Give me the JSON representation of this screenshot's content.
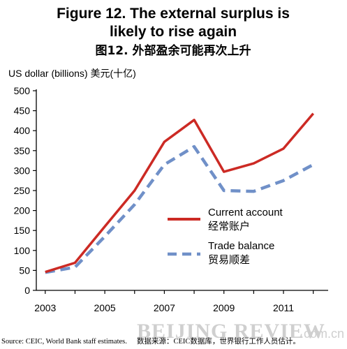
{
  "header": {
    "title_line1": "Figure 12. The external surplus is",
    "title_line2": "likely to rise again",
    "title_zh": "图12. 外部盈余可能再次上升"
  },
  "chart_data": {
    "type": "line",
    "ylabel": "US dollar (billions) 美元(十亿)",
    "xlabel": "",
    "x": [
      2003,
      2004,
      2005,
      2006,
      2007,
      2008,
      2009,
      2010,
      2011,
      2012
    ],
    "xticks": [
      "2003",
      "2005",
      "2007",
      "2009",
      "2011"
    ],
    "yticks": [
      "0",
      "50",
      "100",
      "150",
      "200",
      "250",
      "300",
      "350",
      "400",
      "450",
      "500"
    ],
    "ylim": [
      0,
      500
    ],
    "xlim": [
      2002.7,
      2012.5
    ],
    "grid": false,
    "legend_position": "center-right",
    "series": [
      {
        "name": "Current account",
        "name_zh": "经常账户",
        "color": "#cc2a24",
        "style": "solid",
        "values": [
          46,
          69,
          160,
          250,
          372,
          427,
          297,
          318,
          355,
          443
        ]
      },
      {
        "name": "Trade balance",
        "name_zh": "贸易顺差",
        "color": "#7090c8",
        "style": "dashed",
        "values": [
          45,
          58,
          135,
          215,
          315,
          360,
          250,
          248,
          275,
          315
        ]
      }
    ]
  },
  "footer": {
    "source": "Source: CEIC, World Bank staff estimates.",
    "source_zh": "数据来源：CEIC数据库，世界银行工作人员估计。",
    "watermark": "BEIJING REVIEW",
    "watermark_domain": ".com.cn"
  }
}
